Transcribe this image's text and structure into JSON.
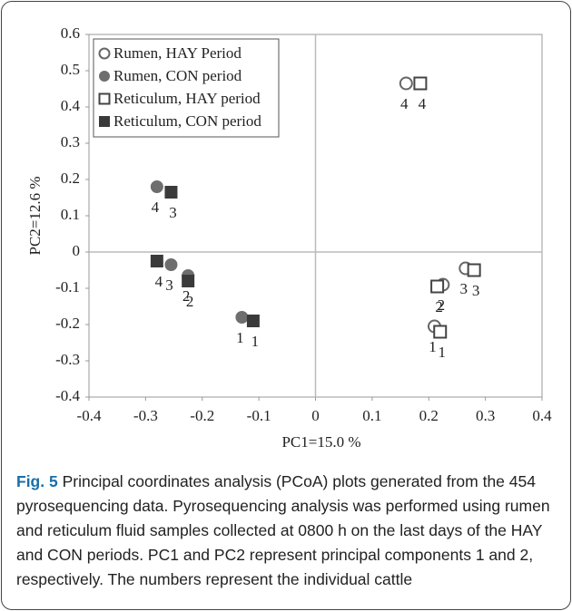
{
  "chart_data": {
    "type": "scatter",
    "x_label": "PC1=15.0 %",
    "y_label": "PC2=12.6 %",
    "caption_label": "Fig. 5",
    "caption": "Principal coordinates analysis (PCoA) plots generated from the 454 pyrosequencing data. Pyrosequencing analysis was performed using rumen and reticulum fluid samples collected at 0800 h on the last days of the HAY and CON periods. PC1 and PC2 represent principal components 1 and 2, respectively. The numbers represent the individual cattle",
    "xlim": [
      -0.4,
      0.4
    ],
    "xticks": [
      -0.4,
      -0.3,
      -0.2,
      -0.1,
      0,
      0.1,
      0.2,
      0.3,
      0.4
    ],
    "ylim": [
      -0.4,
      0.6
    ],
    "yticks": [
      -0.4,
      -0.3,
      -0.2,
      -0.1,
      0,
      0.1,
      0.2,
      0.3,
      0.4,
      0.5,
      0.6
    ],
    "legend_position": "upper left",
    "series": [
      {
        "name": "Rumen, HAY Period",
        "color": "#666666",
        "marker": "circle",
        "filled": false,
        "x": [
          0.16,
          0.265,
          0.225,
          0.21
        ],
        "values": [
          0.465,
          -0.045,
          -0.09,
          -0.205
        ],
        "labels": [
          "4",
          "3",
          "2",
          "1"
        ]
      },
      {
        "name": "Rumen, CON period",
        "color": "#6e6e6e",
        "marker": "circle",
        "filled": true,
        "x": [
          -0.28,
          -0.255,
          -0.225,
          -0.13
        ],
        "values": [
          0.18,
          -0.035,
          -0.065,
          -0.18
        ],
        "labels": [
          "4",
          "3",
          "2",
          "1"
        ]
      },
      {
        "name": "Reticulum, HAY period",
        "color": "#444444",
        "marker": "square",
        "filled": false,
        "x": [
          0.185,
          0.28,
          0.215,
          0.22
        ],
        "values": [
          0.465,
          -0.05,
          -0.095,
          -0.22
        ],
        "labels": [
          "4",
          "3",
          "2",
          "1"
        ]
      },
      {
        "name": "Reticulum, CON period",
        "color": "#3a3a3a",
        "marker": "square",
        "filled": true,
        "x": [
          -0.255,
          -0.28,
          -0.225,
          -0.11
        ],
        "values": [
          0.165,
          -0.025,
          -0.08,
          -0.19
        ],
        "labels": [
          "3",
          "4",
          "2",
          "1"
        ]
      }
    ]
  }
}
